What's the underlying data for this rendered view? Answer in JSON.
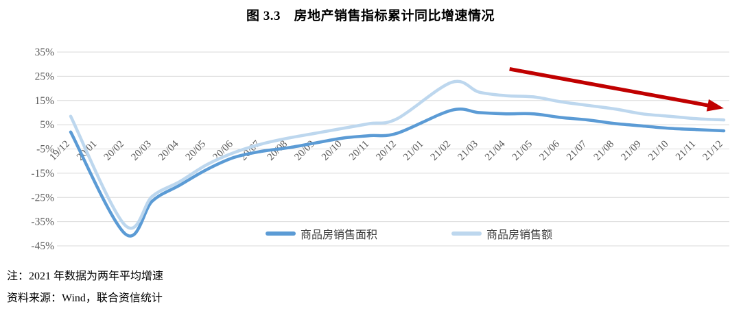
{
  "title": "图 3.3　房地产销售指标累计同比增速情况",
  "chart_data": {
    "type": "line",
    "title": "图 3.3　房地产销售指标累计同比增速情况",
    "xlabel": "",
    "ylabel": "",
    "smooth": true,
    "grid": "horizontal-only",
    "legend_position": "bottom",
    "ylim": [
      -45,
      35
    ],
    "y_ticks": [
      "35%",
      "25%",
      "15%",
      "5%",
      "-5%",
      "-15%",
      "-25%",
      "-35%",
      "-45%"
    ],
    "categories": [
      "19/12",
      "20/01",
      "20/02",
      "20/03",
      "20/04",
      "20/05",
      "20/06",
      "20/07",
      "20/08",
      "20/09",
      "20/10",
      "20/11",
      "20/12",
      "21/01",
      "21/02",
      "21/03",
      "21/04",
      "21/05",
      "21/06",
      "21/07",
      "21/08",
      "21/09",
      "21/10",
      "21/11",
      "21/12"
    ],
    "series": [
      {
        "name": "商品房销售面积",
        "color": "#5B9BD5",
        "values": [
          2,
          null,
          -40,
          -26.5,
          -20,
          -13.5,
          -8.5,
          -6,
          -4.5,
          -2.5,
          -0.5,
          0.5,
          1.5,
          null,
          11,
          10,
          9.5,
          9.5,
          8,
          7,
          5.5,
          4.5,
          3.5,
          3,
          2.5
        ]
      },
      {
        "name": "商品房销售额",
        "color": "#BDD7EE",
        "values": [
          8.5,
          null,
          -36.5,
          -24.5,
          -18.5,
          -11.5,
          -6.5,
          -3,
          -0.5,
          1.5,
          3.5,
          5.5,
          7.5,
          null,
          22.5,
          18.5,
          17,
          16.5,
          14.5,
          13,
          11.5,
          9.5,
          8.5,
          7.5,
          7
        ]
      }
    ],
    "annotation_arrow": {
      "color": "#C00000",
      "from": [
        "21/04",
        28
      ],
      "to": [
        "21/12",
        11.8
      ]
    },
    "axis_text_color": "#595959",
    "gridline_color": "#D9D9D9"
  },
  "legend": {
    "items": [
      {
        "label": "商品房销售面积",
        "color": "#5B9BD5"
      },
      {
        "label": "商品房销售额",
        "color": "#BDD7EE"
      }
    ]
  },
  "notes": {
    "note1": "注：2021 年数据为两年平均增速",
    "note2": "资料来源：Wind，联合资信统计"
  }
}
